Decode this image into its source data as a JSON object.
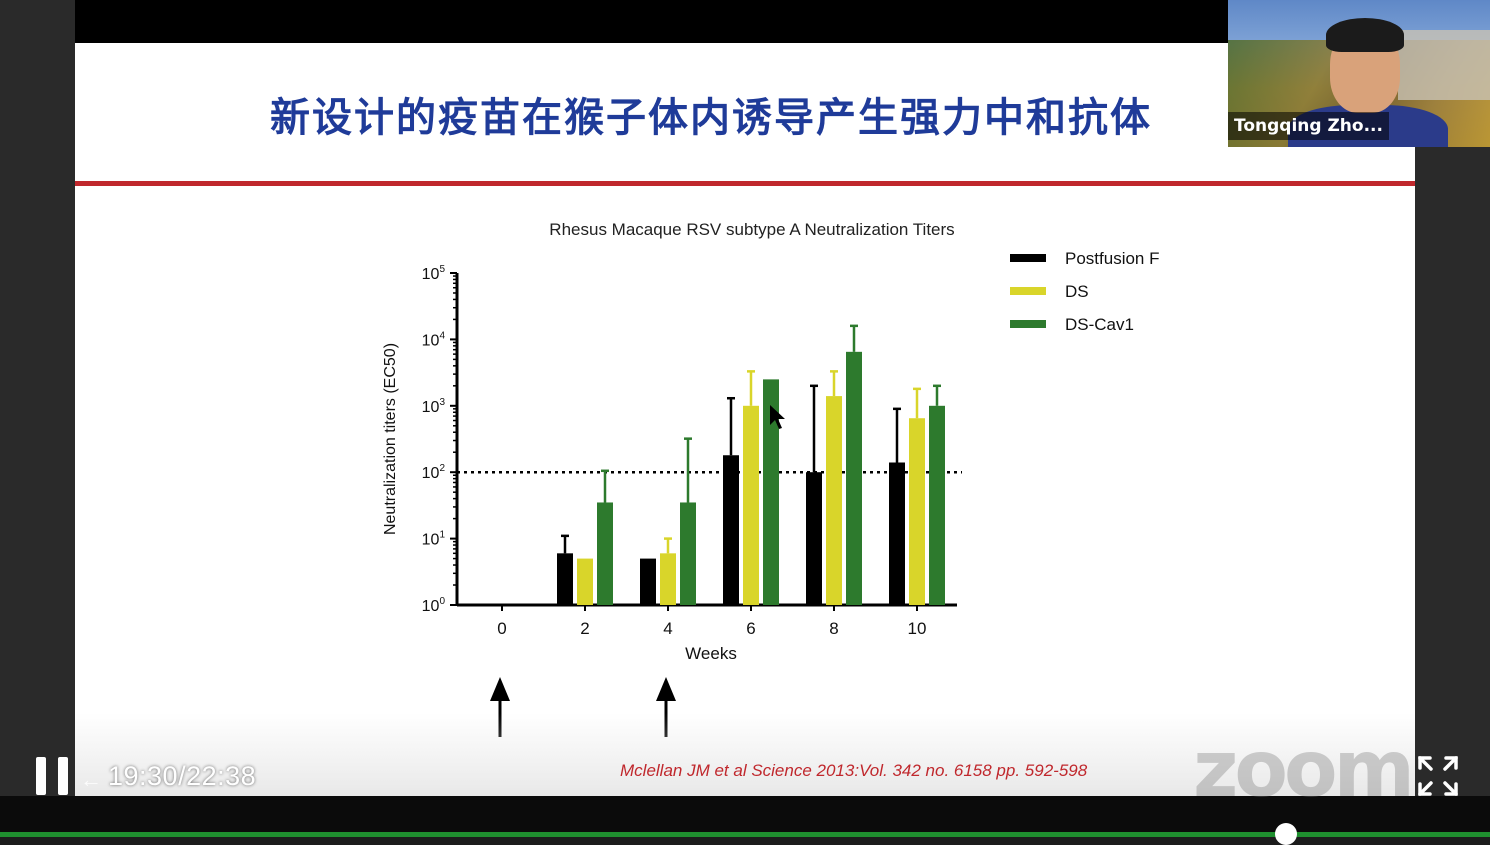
{
  "slide": {
    "title": "新设计的疫苗在猴子体内诱导产生强力中和抗体",
    "citation": "Mclellan JM  et al Science 2013:Vol. 342 no. 6158 pp. 592-598"
  },
  "chart_data": {
    "type": "bar",
    "title": "Rhesus Macaque RSV subtype A Neutralization Titers",
    "xlabel": "Weeks",
    "ylabel": "Neutralization titers (EC50)",
    "yscale": "log",
    "ylim": [
      1,
      100000
    ],
    "ytick_exponents": [
      0,
      1,
      2,
      3,
      4,
      5
    ],
    "categories": [
      "0",
      "2",
      "4",
      "6",
      "8",
      "10"
    ],
    "reference_line": 100,
    "arrows_at": [
      "0",
      "4"
    ],
    "legend_placement": "right",
    "series": [
      {
        "name": "Postfusion F",
        "color": "#000000",
        "values": [
          null,
          6,
          5,
          180,
          100,
          140
        ],
        "errors": [
          null,
          11,
          null,
          1300,
          2000,
          900
        ]
      },
      {
        "name": "DS",
        "color": "#d9d52a",
        "values": [
          null,
          5,
          6,
          1000,
          1400,
          650
        ],
        "errors": [
          null,
          null,
          10,
          3300,
          3300,
          1800
        ]
      },
      {
        "name": "DS-Cav1",
        "color": "#2d7a2d",
        "values": [
          null,
          35,
          35,
          2500,
          6500,
          1000
        ],
        "errors": [
          null,
          105,
          320,
          null,
          16000,
          2000
        ]
      }
    ]
  },
  "webcam": {
    "name": "Tongqing Zho..."
  },
  "player": {
    "time": "19:30/22:38",
    "watermark": "zoom",
    "progress": 0.863
  }
}
